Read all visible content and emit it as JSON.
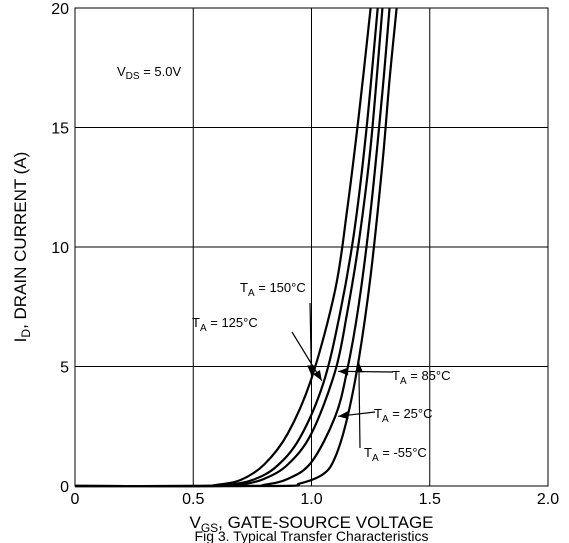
{
  "chart_data": {
    "type": "line",
    "xlabel": {
      "main": "V",
      "sub": "GS",
      "rest": ", GATE-SOURCE VOLTAGE"
    },
    "ylabel": {
      "main": "I",
      "sub": "D",
      "rest": ", DRAIN CURRENT (A)"
    },
    "xlim": [
      0,
      2.0
    ],
    "ylim": [
      0,
      20
    ],
    "x_ticks": [
      0,
      0.5,
      1.0,
      1.5,
      2.0
    ],
    "x_tick_labels": [
      "0",
      "0.5",
      "1.0",
      "1.5",
      "2.0"
    ],
    "y_ticks": [
      0,
      5,
      10,
      15,
      20
    ],
    "y_tick_labels": [
      "0",
      "5",
      "10",
      "15",
      "20"
    ],
    "grid": true,
    "condition": {
      "main": "V",
      "sub": "DS",
      "rest": " = 5.0V"
    },
    "caption": "Fig 3. Typical Transfer Characteristics",
    "series": [
      {
        "name": "150°C",
        "label": {
          "main": "T",
          "sub": "A",
          "rest": " = 150°C"
        },
        "x": [
          0,
          0.5,
          0.6,
          0.7,
          0.8,
          0.9,
          1.0,
          1.1,
          1.15,
          1.2,
          1.25
        ],
        "y": [
          0,
          0,
          0.05,
          0.25,
          0.9,
          2.2,
          4.5,
          8.2,
          11.5,
          15.5,
          20
        ]
      },
      {
        "name": "125°C",
        "label": {
          "main": "T",
          "sub": "A",
          "rest": " = 125°C"
        },
        "x": [
          0,
          0.55,
          0.65,
          0.75,
          0.85,
          0.95,
          1.05,
          1.12,
          1.18,
          1.23,
          1.28
        ],
        "y": [
          0,
          0,
          0.05,
          0.25,
          0.8,
          2.0,
          4.3,
          7.2,
          10.6,
          14.7,
          20
        ]
      },
      {
        "name": "85°C",
        "label": {
          "main": "T",
          "sub": "A",
          "rest": " = 85°C"
        },
        "x": [
          0,
          0.6,
          0.7,
          0.8,
          0.9,
          1.0,
          1.1,
          1.15,
          1.2,
          1.25,
          1.3
        ],
        "y": [
          0,
          0,
          0.05,
          0.3,
          0.9,
          2.2,
          4.8,
          7.2,
          10.2,
          14.2,
          20
        ]
      },
      {
        "name": "25°C",
        "label": {
          "main": "T",
          "sub": "A",
          "rest": " = 25°C"
        },
        "x": [
          0,
          0.7,
          0.8,
          0.9,
          1.0,
          1.1,
          1.15,
          1.2,
          1.25,
          1.3,
          1.33
        ],
        "y": [
          0,
          0,
          0.05,
          0.3,
          1.0,
          2.9,
          4.8,
          7.6,
          11.5,
          16.5,
          20
        ]
      },
      {
        "name": "-55°C",
        "label": {
          "main": "T",
          "sub": "A",
          "rest": " = -55°C"
        },
        "x": [
          0,
          0.85,
          0.95,
          1.05,
          1.1,
          1.15,
          1.2,
          1.25,
          1.3,
          1.33,
          1.36
        ],
        "y": [
          0,
          0,
          0.1,
          0.5,
          1.2,
          2.8,
          5.3,
          8.8,
          13.5,
          17.0,
          20
        ]
      }
    ],
    "annotations": [
      {
        "series": "150°C",
        "point": [
          1.0,
          4.5
        ]
      },
      {
        "series": "125°C",
        "point": [
          1.05,
          4.3
        ]
      },
      {
        "series": "85°C",
        "point": [
          1.1,
          4.8
        ]
      },
      {
        "series": "25°C",
        "point": [
          1.1,
          2.9
        ]
      },
      {
        "series": "-55°C",
        "point": [
          1.2,
          5.3
        ]
      }
    ],
    "line_color": "#000000"
  }
}
